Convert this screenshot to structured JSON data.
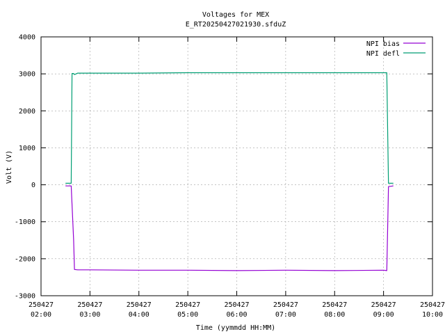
{
  "chart_data": {
    "type": "line",
    "title": "Voltages for MEX",
    "subtitle": "E_RT20250427021930.sfduZ",
    "xlabel": "Time (yymmdd HH:MM)",
    "ylabel": "Volt (V)",
    "ylim": [
      -3000,
      4000
    ],
    "yticks": [
      "4000",
      "3000",
      "2000",
      "1000",
      "0",
      "-1000",
      "-2000",
      "-3000"
    ],
    "xlim": [
      "02:00",
      "10:00"
    ],
    "xticks": [
      {
        "date": "250427",
        "time": "02:00"
      },
      {
        "date": "250427",
        "time": "03:00"
      },
      {
        "date": "250427",
        "time": "04:00"
      },
      {
        "date": "250427",
        "time": "05:00"
      },
      {
        "date": "250427",
        "time": "06:00"
      },
      {
        "date": "250427",
        "time": "07:00"
      },
      {
        "date": "250427",
        "time": "08:00"
      },
      {
        "date": "250427",
        "time": "09:00"
      },
      {
        "date": "250427",
        "time": "10:00"
      }
    ],
    "grid": true,
    "legend_position": "top-right",
    "series": [
      {
        "name": "NPI bias",
        "color": "#9400d3",
        "points": [
          [
            "02:30",
            -30
          ],
          [
            "02:37",
            -30
          ],
          [
            "02:40",
            -1500
          ],
          [
            "02:41",
            -2290
          ],
          [
            "02:45",
            -2300
          ],
          [
            "03:00",
            -2300
          ],
          [
            "04:00",
            -2310
          ],
          [
            "05:00",
            -2310
          ],
          [
            "06:00",
            -2320
          ],
          [
            "07:00",
            -2310
          ],
          [
            "08:00",
            -2320
          ],
          [
            "09:00",
            -2310
          ],
          [
            "09:04",
            -2320
          ],
          [
            "09:05",
            -1200
          ],
          [
            "09:06",
            -50
          ],
          [
            "09:12",
            -30
          ]
        ]
      },
      {
        "name": "NPI defl",
        "color": "#009e73",
        "points": [
          [
            "02:30",
            40
          ],
          [
            "02:37",
            40
          ],
          [
            "02:38",
            3010
          ],
          [
            "02:40",
            3010
          ],
          [
            "02:41",
            2980
          ],
          [
            "02:45",
            3020
          ],
          [
            "03:00",
            3020
          ],
          [
            "04:00",
            3020
          ],
          [
            "05:00",
            3030
          ],
          [
            "06:00",
            3030
          ],
          [
            "07:00",
            3030
          ],
          [
            "08:00",
            3030
          ],
          [
            "09:00",
            3030
          ],
          [
            "09:04",
            3030
          ],
          [
            "09:05",
            1500
          ],
          [
            "09:06",
            40
          ],
          [
            "09:12",
            40
          ]
        ]
      }
    ]
  }
}
